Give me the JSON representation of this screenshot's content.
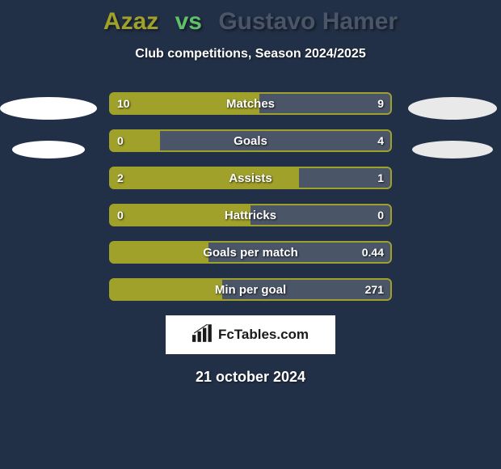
{
  "background_color": "#223047",
  "title": {
    "player1": "Azaz",
    "vs": "vs",
    "player2": "Gustavo Hamer",
    "p1_color": "#9fa12a",
    "vs_color": "#5fbf6a",
    "p2_color": "#4a5568"
  },
  "subtitle": "Club competitions, Season 2024/2025",
  "colors": {
    "left_bar": "#9fa12a",
    "right_bar": "#4a5568",
    "bar_border": "#9fa12a",
    "text": "#ffffff"
  },
  "stats": [
    {
      "label": "Matches",
      "left_val": "10",
      "right_val": "9",
      "left_pct": 53,
      "right_pct": 47
    },
    {
      "label": "Goals",
      "left_val": "0",
      "right_val": "4",
      "left_pct": 18,
      "right_pct": 82
    },
    {
      "label": "Assists",
      "left_val": "2",
      "right_val": "1",
      "left_pct": 67,
      "right_pct": 33
    },
    {
      "label": "Hattricks",
      "left_val": "0",
      "right_val": "0",
      "left_pct": 50,
      "right_pct": 50
    },
    {
      "label": "Goals per match",
      "left_val": "",
      "right_val": "0.44",
      "left_pct": 35,
      "right_pct": 65
    },
    {
      "label": "Min per goal",
      "left_val": "",
      "right_val": "271",
      "left_pct": 40,
      "right_pct": 60
    }
  ],
  "brand": "FcTables.com",
  "date": "21 october 2024",
  "ovals": {
    "left_count": 2,
    "right_count": 2
  }
}
